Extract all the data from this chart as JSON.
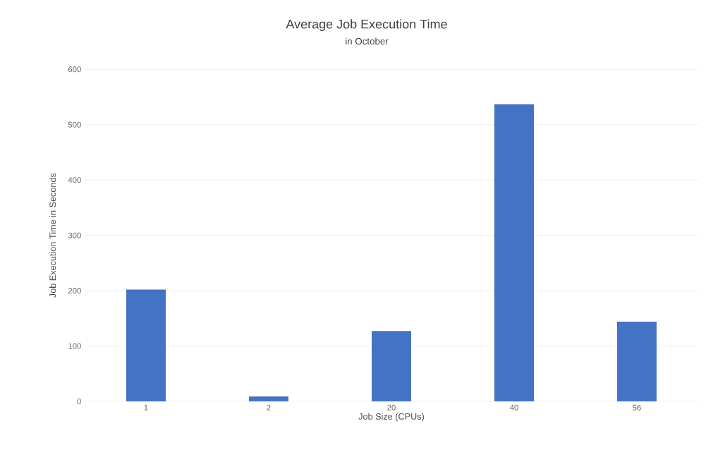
{
  "chart_data": {
    "type": "bar",
    "title": "Average Job Execution Time",
    "subtitle": "in October",
    "xlabel": "Job Size (CPUs)",
    "ylabel": "Job Execution Time in Seconds",
    "categories": [
      "1",
      "2",
      "20",
      "40",
      "56"
    ],
    "values": [
      202,
      9,
      127,
      537,
      144
    ],
    "color": "#4472c4",
    "ylim": [
      0,
      600
    ],
    "yticks": [
      0,
      100,
      200,
      300,
      400,
      500,
      600
    ],
    "grid": "y"
  }
}
